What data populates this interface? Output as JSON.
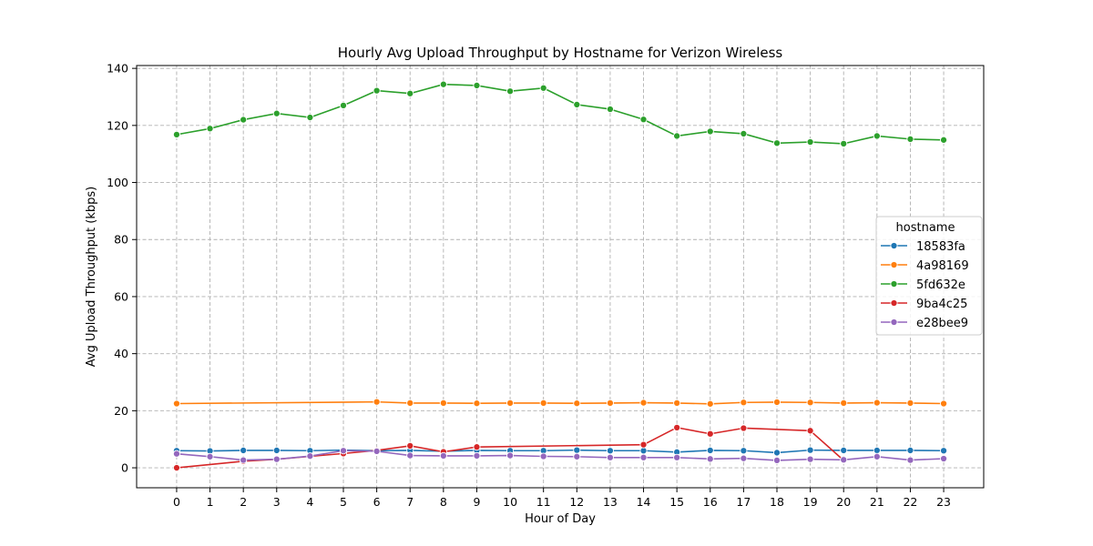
{
  "chart_data": {
    "type": "line",
    "title": "Hourly Avg Upload Throughput by Hostname for Verizon Wireless",
    "xlabel": "Hour of Day",
    "ylabel": "Avg Upload Throughput (kbps)",
    "x": [
      0,
      1,
      2,
      3,
      4,
      5,
      6,
      7,
      8,
      9,
      10,
      11,
      12,
      13,
      14,
      15,
      16,
      17,
      18,
      19,
      20,
      21,
      22,
      23
    ],
    "xlim": [
      -1.2,
      24.2
    ],
    "ylim": [
      -7,
      141
    ],
    "yticks": [
      0,
      20,
      40,
      60,
      80,
      100,
      120,
      140
    ],
    "grid": true,
    "legend": {
      "title": "hostname",
      "placement": "center-right"
    },
    "series": [
      {
        "name": "18583fa",
        "color": "#1f77b4",
        "points": [
          [
            0,
            6.0
          ],
          [
            1,
            5.9
          ],
          [
            2,
            6.1
          ],
          [
            3,
            6.1
          ],
          [
            4,
            6.0
          ],
          [
            5,
            6.2
          ],
          [
            6,
            6.0
          ],
          [
            7,
            6.1
          ],
          [
            8,
            5.8
          ],
          [
            9,
            6.1
          ],
          [
            10,
            6.0
          ],
          [
            11,
            6.0
          ],
          [
            12,
            6.2
          ],
          [
            13,
            6.0
          ],
          [
            14,
            6.0
          ],
          [
            15,
            5.5
          ],
          [
            16,
            6.1
          ],
          [
            17,
            6.0
          ],
          [
            18,
            5.3
          ],
          [
            19,
            6.2
          ],
          [
            20,
            6.1
          ],
          [
            21,
            6.1
          ],
          [
            22,
            6.1
          ],
          [
            23,
            6.0
          ]
        ]
      },
      {
        "name": "4a98169",
        "color": "#ff7f0e",
        "points": [
          [
            0,
            22.5
          ],
          [
            6,
            23.1
          ],
          [
            7,
            22.7
          ],
          [
            8,
            22.7
          ],
          [
            9,
            22.6
          ],
          [
            10,
            22.7
          ],
          [
            11,
            22.7
          ],
          [
            12,
            22.6
          ],
          [
            13,
            22.7
          ],
          [
            14,
            22.8
          ],
          [
            15,
            22.7
          ],
          [
            16,
            22.4
          ],
          [
            17,
            22.9
          ],
          [
            18,
            23.0
          ],
          [
            19,
            22.9
          ],
          [
            20,
            22.7
          ],
          [
            21,
            22.8
          ],
          [
            22,
            22.7
          ],
          [
            23,
            22.5
          ]
        ]
      },
      {
        "name": "5fd632e",
        "color": "#2ca02c",
        "points": [
          [
            0,
            116.8
          ],
          [
            1,
            118.9
          ],
          [
            2,
            122.0
          ],
          [
            3,
            124.2
          ],
          [
            4,
            122.8
          ],
          [
            5,
            127.0
          ],
          [
            6,
            132.2
          ],
          [
            7,
            131.2
          ],
          [
            8,
            134.4
          ],
          [
            9,
            134.0
          ],
          [
            10,
            132.0
          ],
          [
            11,
            133.1
          ],
          [
            12,
            127.3
          ],
          [
            13,
            125.7
          ],
          [
            14,
            122.1
          ],
          [
            15,
            116.3
          ],
          [
            16,
            117.9
          ],
          [
            17,
            117.1
          ],
          [
            18,
            113.8
          ],
          [
            19,
            114.2
          ],
          [
            20,
            113.6
          ],
          [
            21,
            116.3
          ],
          [
            22,
            115.2
          ],
          [
            23,
            114.9
          ]
        ]
      },
      {
        "name": "9ba4c25",
        "color": "#d62728",
        "points": [
          [
            0,
            0.0
          ],
          [
            2,
            2.3
          ],
          [
            3,
            3.0
          ],
          [
            4,
            4.0
          ],
          [
            5,
            5.0
          ],
          [
            6,
            6.1
          ],
          [
            7,
            7.7
          ],
          [
            8,
            5.6
          ],
          [
            9,
            7.3
          ],
          [
            14,
            8.1
          ],
          [
            15,
            14.1
          ],
          [
            16,
            11.9
          ],
          [
            17,
            13.9
          ],
          [
            19,
            13.0
          ],
          [
            20,
            2.6
          ]
        ]
      },
      {
        "name": "e28bee9",
        "color": "#9467bd",
        "points": [
          [
            0,
            4.9
          ],
          [
            1,
            3.9
          ],
          [
            2,
            2.7
          ],
          [
            3,
            3.0
          ],
          [
            4,
            4.1
          ],
          [
            5,
            6.0
          ],
          [
            6,
            5.8
          ],
          [
            7,
            4.3
          ],
          [
            8,
            4.2
          ],
          [
            9,
            4.2
          ],
          [
            10,
            4.3
          ],
          [
            11,
            4.0
          ],
          [
            12,
            3.9
          ],
          [
            13,
            3.6
          ],
          [
            14,
            3.6
          ],
          [
            15,
            3.6
          ],
          [
            16,
            3.1
          ],
          [
            17,
            3.3
          ],
          [
            18,
            2.6
          ],
          [
            19,
            3.0
          ],
          [
            20,
            2.8
          ],
          [
            21,
            3.9
          ],
          [
            22,
            2.7
          ],
          [
            23,
            3.2
          ]
        ]
      }
    ]
  }
}
